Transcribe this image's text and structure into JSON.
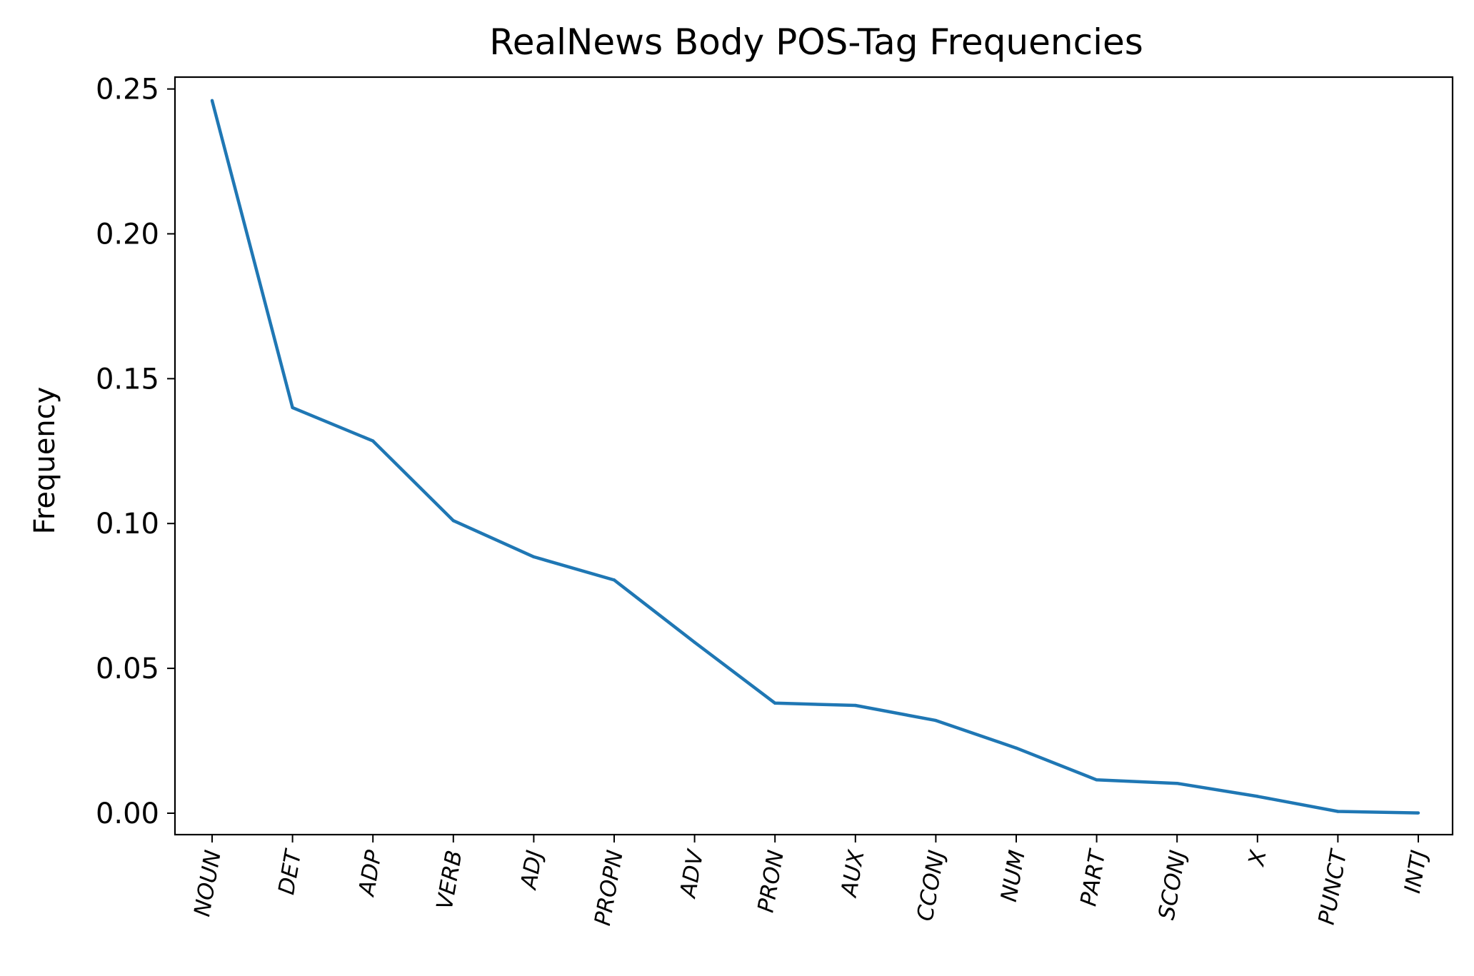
{
  "chart_data": {
    "type": "line",
    "title": "RealNews Body POS-Tag Frequencies",
    "xlabel": "",
    "ylabel": "Frequency",
    "categories": [
      "NOUN",
      "DET",
      "ADP",
      "VERB",
      "ADJ",
      "PROPN",
      "ADV",
      "PRON",
      "AUX",
      "CCONJ",
      "NUM",
      "PART",
      "SCONJ",
      "X",
      "PUNCT",
      "INTJ"
    ],
    "series": [
      {
        "values": [
          0.246,
          0.14,
          0.1285,
          0.101,
          0.0885,
          0.0805,
          0.059,
          0.038,
          0.0372,
          0.032,
          0.0225,
          0.0115,
          0.0103,
          0.0058,
          0.0006,
          0.0001
        ],
        "color": "#1f77b4"
      }
    ],
    "yticks": [
      {
        "value": 0.0,
        "label": "0.00"
      },
      {
        "value": 0.05,
        "label": "0.05"
      },
      {
        "value": 0.1,
        "label": "0.10"
      },
      {
        "value": 0.15,
        "label": "0.15"
      },
      {
        "value": 0.2,
        "label": "0.20"
      },
      {
        "value": 0.25,
        "label": "0.25"
      }
    ],
    "ylim": [
      -0.0074,
      0.2541
    ],
    "grid": false,
    "legend": "none"
  }
}
